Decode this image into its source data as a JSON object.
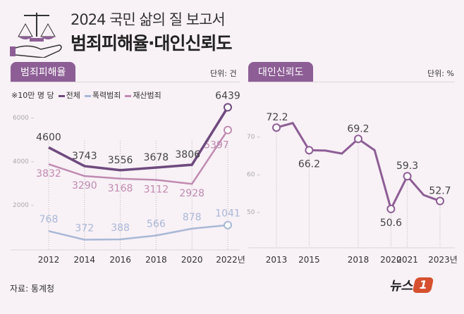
{
  "header": {
    "title_line1": "2024 국민 삶의 질 보고서",
    "title_line2": "범죄피해율·대인신뢰도",
    "icon": "scale-hand-icon"
  },
  "colors": {
    "accent": "#8d5e95",
    "total": "#6e4a7e",
    "violent": "#a9b8d6",
    "property": "#c08bb0",
    "background": "#f8f1f6"
  },
  "footer": {
    "source": "자료: 통계청",
    "logo": "뉴스1"
  },
  "chart_data": [
    {
      "type": "line",
      "panel_title": "범죄피해율",
      "unit": "단위: 건",
      "note": "※10만 명 당",
      "categories": [
        "2012",
        "2014",
        "2016",
        "2018",
        "2020",
        "2022년"
      ],
      "yticks": [
        "6000",
        "4000",
        "2000"
      ],
      "ylim": [
        0,
        6600
      ],
      "series": [
        {
          "name": "전체",
          "values": [
            4600,
            3743,
            3556,
            3678,
            3806,
            6439
          ]
        },
        {
          "name": "폭력범죄",
          "values": [
            768,
            372,
            388,
            566,
            878,
            1041
          ]
        },
        {
          "name": "재산범죄",
          "values": [
            3832,
            3290,
            3168,
            3112,
            2928,
            5397
          ]
        }
      ]
    },
    {
      "type": "line",
      "panel_title": "대인신뢰도",
      "unit": "단위: %",
      "x": [
        2013,
        2014,
        2015,
        2016,
        2017,
        2018,
        2019,
        2020,
        2021,
        2022,
        2023
      ],
      "values": [
        72.2,
        73.4,
        66.2,
        66.1,
        65.3,
        69.2,
        66.2,
        50.6,
        59.3,
        54.3,
        52.7
      ],
      "labeled": [
        2013,
        2015,
        2018,
        2020,
        2021,
        2023
      ],
      "tick_labels": [
        "2013",
        "2015",
        "2018",
        "2020",
        "2021",
        "2023년"
      ],
      "yticks": [
        "70",
        "60",
        "50"
      ],
      "ylim": [
        45,
        78
      ]
    }
  ]
}
